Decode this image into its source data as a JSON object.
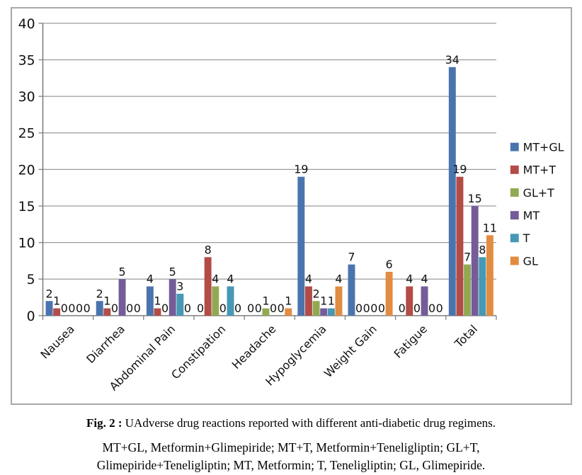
{
  "figure": {
    "caption_label": "Fig. 2 :",
    "caption_text": " UAdverse drug reactions reported with different anti-diabetic drug regimens.",
    "caption_abbreviations": "MT+GL, Metformin+Glimepiride; MT+T, Metformin+Teneligliptin; GL+T, Glimepiride+Teneligliptin; MT, Metformin; T, Teneligliptin; GL, Glimepiride."
  },
  "chart_data": {
    "type": "bar",
    "title": "",
    "xlabel": "",
    "ylabel": "",
    "ylim": [
      0,
      40
    ],
    "ytick_step": 5,
    "grid": true,
    "data_labels": true,
    "legend_position": "right",
    "categories": [
      "Nausea",
      "Diarrhea",
      "Abdominal Pain",
      "Constipation",
      "Headache",
      "Hypoglycemia",
      "Weight Gain",
      "Fatigue",
      "Total"
    ],
    "series": [
      {
        "name": "MT+GL",
        "color": "#4a74ae",
        "values": [
          2,
          2,
          4,
          0,
          0,
          19,
          7,
          0,
          34
        ]
      },
      {
        "name": "MT+T",
        "color": "#b34b47",
        "values": [
          1,
          1,
          1,
          8,
          0,
          4,
          0,
          4,
          19
        ]
      },
      {
        "name": "GL+T",
        "color": "#92a953",
        "values": [
          0,
          0,
          0,
          4,
          1,
          2,
          0,
          0,
          7
        ]
      },
      {
        "name": "MT",
        "color": "#745c99",
        "values": [
          0,
          5,
          5,
          0,
          0,
          1,
          0,
          4,
          15
        ]
      },
      {
        "name": "T",
        "color": "#4698b5",
        "values": [
          0,
          0,
          3,
          4,
          0,
          1,
          0,
          0,
          8
        ]
      },
      {
        "name": "GL",
        "color": "#e28c42",
        "values": [
          0,
          0,
          0,
          0,
          1,
          4,
          6,
          0,
          11
        ]
      }
    ],
    "colors": {
      "grid": "#9b9b9b",
      "axis": "#7f7f7f",
      "text": "#111111",
      "chart_border": "#a8a8a8"
    }
  }
}
